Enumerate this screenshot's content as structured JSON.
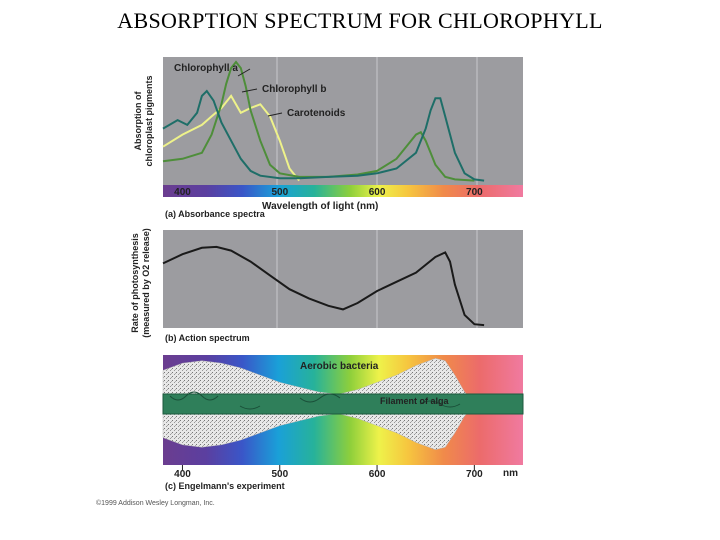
{
  "slide": {
    "title": "ABSORPTION SPECTRUM FOR CHLOROPHYLL",
    "copyright": "©1999 Addison Wesley Longman, Inc."
  },
  "colors": {
    "panel_bg": "#9c9ca0",
    "chlorophyll_a": "#1e6e68",
    "chlorophyll_b": "#4e8e3a",
    "carotenoids": "#eef28a",
    "action": "#1a1a1a",
    "bacteria": "#e0e0e0",
    "alga": "#2f7f5a"
  },
  "chart_data": [
    {
      "type": "line",
      "panel": "(a) Absorbance spectra",
      "xlabel": "Wavelength of light (nm)",
      "ylabel_lines": [
        "Absorption of",
        "chloroplast pigments"
      ],
      "xlim": [
        380,
        750
      ],
      "ylim": [
        0,
        1
      ],
      "x_ticks": [
        400,
        500,
        600,
        700
      ],
      "series": [
        {
          "name": "Chlorophyll a",
          "label": "Chlorophyll a",
          "color": "#1e6e68",
          "x": [
            380,
            395,
            405,
            415,
            420,
            425,
            432,
            440,
            450,
            460,
            470,
            480,
            500,
            520,
            550,
            580,
            600,
            620,
            640,
            650,
            655,
            660,
            665,
            670,
            680,
            690,
            700,
            710
          ],
          "y": [
            0.45,
            0.52,
            0.48,
            0.58,
            0.72,
            0.76,
            0.68,
            0.5,
            0.35,
            0.2,
            0.1,
            0.06,
            0.04,
            0.04,
            0.05,
            0.06,
            0.08,
            0.12,
            0.25,
            0.45,
            0.6,
            0.7,
            0.7,
            0.55,
            0.25,
            0.08,
            0.03,
            0.02
          ]
        },
        {
          "name": "Chlorophyll b",
          "label": "Chlorophyll b",
          "color": "#4e8e3a",
          "x": [
            380,
            400,
            420,
            430,
            440,
            445,
            450,
            455,
            460,
            465,
            470,
            480,
            490,
            500,
            520,
            550,
            580,
            600,
            620,
            630,
            640,
            645,
            650,
            655,
            660,
            670,
            680,
            700
          ],
          "y": [
            0.18,
            0.2,
            0.25,
            0.4,
            0.65,
            0.82,
            0.95,
            1.0,
            0.95,
            0.8,
            0.6,
            0.35,
            0.15,
            0.08,
            0.05,
            0.05,
            0.07,
            0.1,
            0.2,
            0.3,
            0.4,
            0.42,
            0.35,
            0.25,
            0.15,
            0.05,
            0.03,
            0.02
          ]
        },
        {
          "name": "Carotenoids",
          "label": "Carotenoids",
          "color": "#eef28a",
          "x": [
            380,
            400,
            420,
            430,
            440,
            450,
            460,
            470,
            480,
            490,
            500,
            510,
            520
          ],
          "y": [
            0.3,
            0.4,
            0.48,
            0.55,
            0.62,
            0.72,
            0.58,
            0.62,
            0.65,
            0.55,
            0.35,
            0.12,
            0.02
          ]
        }
      ]
    },
    {
      "type": "line",
      "panel": "(b) Action spectrum",
      "ylabel_lines": [
        "Rate of photosynthesis",
        "(measured by O2 release)"
      ],
      "xlim": [
        380,
        750
      ],
      "ylim": [
        0,
        1
      ],
      "series": [
        {
          "name": "Action spectrum",
          "color": "#1a1a1a",
          "x": [
            380,
            400,
            420,
            435,
            450,
            470,
            490,
            510,
            530,
            550,
            565,
            580,
            600,
            620,
            640,
            660,
            670,
            675,
            680,
            690,
            700,
            710
          ],
          "y": [
            0.68,
            0.78,
            0.85,
            0.86,
            0.82,
            0.7,
            0.55,
            0.4,
            0.3,
            0.22,
            0.18,
            0.25,
            0.38,
            0.48,
            0.58,
            0.75,
            0.8,
            0.7,
            0.45,
            0.12,
            0.02,
            0.01
          ]
        }
      ]
    },
    {
      "type": "area",
      "panel": "(c) Engelmann's experiment",
      "xlim": [
        380,
        750
      ],
      "x_ticks": [
        400,
        500,
        600,
        700
      ],
      "x_unit": "nm",
      "annotations": [
        "Aerobic bacteria",
        "Filament of alga"
      ],
      "series": [
        {
          "name": "Aerobic bacteria density",
          "color": "#e0e0e0",
          "x": [
            380,
            400,
            420,
            440,
            460,
            480,
            500,
            520,
            540,
            560,
            580,
            600,
            620,
            640,
            660,
            670,
            680,
            690,
            700
          ],
          "y": [
            0.7,
            0.85,
            0.9,
            0.85,
            0.75,
            0.6,
            0.45,
            0.35,
            0.25,
            0.2,
            0.3,
            0.45,
            0.6,
            0.8,
            0.95,
            0.9,
            0.6,
            0.25,
            0.05
          ]
        }
      ]
    }
  ]
}
